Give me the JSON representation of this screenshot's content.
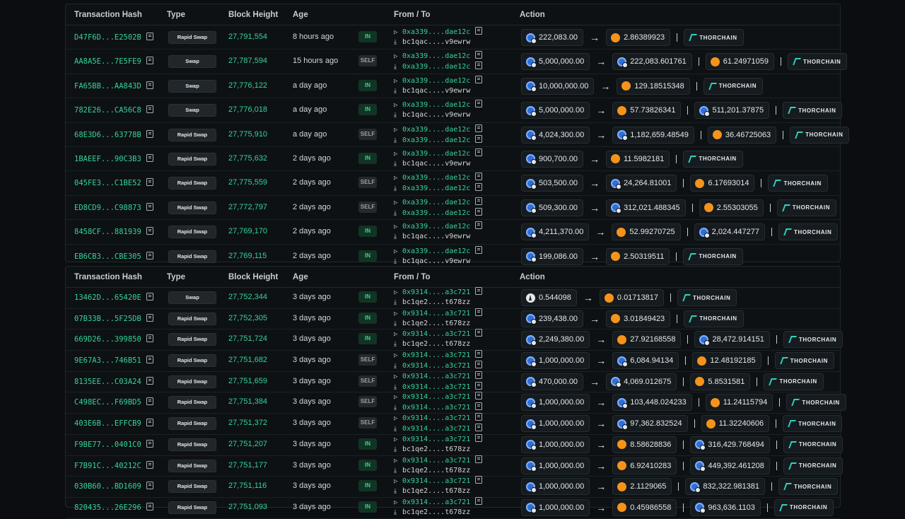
{
  "headers": {
    "hash": "Transaction Hash",
    "type": "Type",
    "block": "Block Height",
    "age": "Age",
    "fromto": "From / To",
    "action": "Action"
  },
  "thorchain": "THORCHAIN",
  "table1": [
    {
      "hash": "D47F6D...E2502B",
      "type": "Rapid Swap",
      "block": "27,791,554",
      "age": "8 hours ago",
      "dir": "IN",
      "from": "0xa339....dae12c",
      "to": "bc1qac....v9ewrw",
      "in": {
        "coin": "rune",
        "amt": "222,083.00"
      },
      "outs": [
        {
          "coin": "btc",
          "amt": "2.86389923"
        }
      ]
    },
    {
      "hash": "AA8A5E...7E5FE9",
      "type": "Swap",
      "block": "27,787,594",
      "age": "15 hours ago",
      "dir": "SELF",
      "from": "0xa339....dae12c",
      "to": "0xa339....dae12c",
      "in": {
        "coin": "rune",
        "amt": "5,000,000.00"
      },
      "outs": [
        {
          "coin": "rune",
          "amt": "222,083.601761"
        },
        {
          "coin": "btc",
          "amt": "61.24971059"
        }
      ]
    },
    {
      "hash": "FA65BB...AA843D",
      "type": "Swap",
      "block": "27,776,122",
      "age": "a day ago",
      "dir": "IN",
      "from": "0xa339....dae12c",
      "to": "bc1qac....v9ewrw",
      "in": {
        "coin": "rune",
        "amt": "10,000,000.00"
      },
      "outs": [
        {
          "coin": "btc",
          "amt": "129.18515348"
        }
      ]
    },
    {
      "hash": "782E26...CA56C8",
      "type": "Swap",
      "block": "27,776,018",
      "age": "a day ago",
      "dir": "IN",
      "from": "0xa339....dae12c",
      "to": "bc1qac....v9ewrw",
      "in": {
        "coin": "rune",
        "amt": "5,000,000.00"
      },
      "outs": [
        {
          "coin": "btc",
          "amt": "57.73826341"
        },
        {
          "coin": "rune",
          "amt": "511,201.37875"
        }
      ]
    },
    {
      "hash": "68E3D6...63778B",
      "type": "Rapid Swap",
      "block": "27,775,910",
      "age": "a day ago",
      "dir": "SELF",
      "from": "0xa339....dae12c",
      "to": "0xa339....dae12c",
      "in": {
        "coin": "rune",
        "amt": "4,024,300.00"
      },
      "outs": [
        {
          "coin": "rune",
          "amt": "1,182,659.48549"
        },
        {
          "coin": "btc",
          "amt": "36.46725063"
        }
      ]
    },
    {
      "hash": "1BAEEF...90C3B3",
      "type": "Rapid Swap",
      "block": "27,775,632",
      "age": "2 days ago",
      "dir": "IN",
      "from": "0xa339....dae12c",
      "to": "bc1qac....v9ewrw",
      "in": {
        "coin": "rune",
        "amt": "900,700.00"
      },
      "outs": [
        {
          "coin": "btc",
          "amt": "11.5982181"
        }
      ]
    },
    {
      "hash": "045FE3...C1BE52",
      "type": "Rapid Swap",
      "block": "27,775,559",
      "age": "2 days ago",
      "dir": "SELF",
      "from": "0xa339....dae12c",
      "to": "0xa339....dae12c",
      "in": {
        "coin": "rune",
        "amt": "503,500.00"
      },
      "outs": [
        {
          "coin": "rune",
          "amt": "24,264.81001"
        },
        {
          "coin": "btc",
          "amt": "6.17693014"
        }
      ]
    },
    {
      "hash": "ED8CD9...C98873",
      "type": "Rapid Swap",
      "block": "27,772,797",
      "age": "2 days ago",
      "dir": "SELF",
      "from": "0xa339....dae12c",
      "to": "0xa339....dae12c",
      "in": {
        "coin": "rune",
        "amt": "509,300.00"
      },
      "outs": [
        {
          "coin": "rune",
          "amt": "312,021.488345"
        },
        {
          "coin": "btc",
          "amt": "2.55303055"
        }
      ]
    },
    {
      "hash": "8458CF...881939",
      "type": "Rapid Swap",
      "block": "27,769,170",
      "age": "2 days ago",
      "dir": "IN",
      "from": "0xa339....dae12c",
      "to": "bc1qac....v9ewrw",
      "in": {
        "coin": "rune",
        "amt": "4,211,370.00"
      },
      "outs": [
        {
          "coin": "btc",
          "amt": "52.99270725"
        },
        {
          "coin": "rune",
          "amt": "2,024.447277"
        }
      ]
    },
    {
      "hash": "EB6CB3...CBE305",
      "type": "Rapid Swap",
      "block": "27,769,115",
      "age": "2 days ago",
      "dir": "IN",
      "from": "0xa339....dae12c",
      "to": "bc1qac....v9ewrw",
      "in": {
        "coin": "rune",
        "amt": "199,086.00"
      },
      "outs": [
        {
          "coin": "btc",
          "amt": "2.50319511"
        }
      ]
    }
  ],
  "table2": [
    {
      "hash": "13462D...65420E",
      "type": "Swap",
      "block": "27,752,344",
      "age": "3 days ago",
      "dir": "IN",
      "from": "0x9314....a3c721",
      "to": "bc1qe2....t678zz",
      "in": {
        "coin": "eth",
        "amt": "0.544098"
      },
      "outs": [
        {
          "coin": "btc",
          "amt": "0.01713817"
        }
      ]
    },
    {
      "hash": "07B33B...5F25DB",
      "type": "Rapid Swap",
      "block": "27,752,305",
      "age": "3 days ago",
      "dir": "IN",
      "from": "0x9314....a3c721",
      "to": "bc1qe2....t678zz",
      "in": {
        "coin": "rune",
        "amt": "239,438.00"
      },
      "outs": [
        {
          "coin": "btc",
          "amt": "3.01849423"
        }
      ]
    },
    {
      "hash": "669D26...399850",
      "type": "Rapid Swap",
      "block": "27,751,724",
      "age": "3 days ago",
      "dir": "IN",
      "from": "0x9314....a3c721",
      "to": "bc1qe2....t678zz",
      "in": {
        "coin": "rune",
        "amt": "2,249,380.00"
      },
      "outs": [
        {
          "coin": "btc",
          "amt": "27.92168558"
        },
        {
          "coin": "rune",
          "amt": "28,472.914151"
        }
      ]
    },
    {
      "hash": "9E67A3...746B51",
      "type": "Rapid Swap",
      "block": "27,751,682",
      "age": "3 days ago",
      "dir": "SELF",
      "from": "0x9314....a3c721",
      "to": "0x9314....a3c721",
      "in": {
        "coin": "rune",
        "amt": "1,000,000.00"
      },
      "outs": [
        {
          "coin": "rune",
          "amt": "6,084.94134"
        },
        {
          "coin": "btc",
          "amt": "12.48192185"
        }
      ]
    },
    {
      "hash": "8135EE...C03A24",
      "type": "Rapid Swap",
      "block": "27,751,659",
      "age": "3 days ago",
      "dir": "SELF",
      "from": "0x9314....a3c721",
      "to": "0x9314....a3c721",
      "in": {
        "coin": "rune",
        "amt": "470,000.00"
      },
      "outs": [
        {
          "coin": "rune",
          "amt": "4,069.012675"
        },
        {
          "coin": "btc",
          "amt": "5.8531581"
        }
      ]
    },
    {
      "hash": "C498EC...F69BD5",
      "type": "Rapid Swap",
      "block": "27,751,384",
      "age": "3 days ago",
      "dir": "SELF",
      "from": "0x9314....a3c721",
      "to": "0x9314....a3c721",
      "in": {
        "coin": "rune",
        "amt": "1,000,000.00"
      },
      "outs": [
        {
          "coin": "rune",
          "amt": "103,448.024233"
        },
        {
          "coin": "btc",
          "amt": "11.24115794"
        }
      ]
    },
    {
      "hash": "403E6B...EFFCB9",
      "type": "Rapid Swap",
      "block": "27,751,372",
      "age": "3 days ago",
      "dir": "SELF",
      "from": "0x9314....a3c721",
      "to": "0x9314....a3c721",
      "in": {
        "coin": "rune",
        "amt": "1,000,000.00"
      },
      "outs": [
        {
          "coin": "rune",
          "amt": "97,362.832524"
        },
        {
          "coin": "btc",
          "amt": "11.32240606"
        }
      ]
    },
    {
      "hash": "F9BE77...0401C0",
      "type": "Rapid Swap",
      "block": "27,751,207",
      "age": "3 days ago",
      "dir": "IN",
      "from": "0x9314....a3c721",
      "to": "bc1qe2....t678zz",
      "in": {
        "coin": "rune",
        "amt": "1,000,000.00"
      },
      "outs": [
        {
          "coin": "btc",
          "amt": "8.58628836"
        },
        {
          "coin": "rune",
          "amt": "316,429.768494"
        }
      ]
    },
    {
      "hash": "F7B91C...40212C",
      "type": "Rapid Swap",
      "block": "27,751,177",
      "age": "3 days ago",
      "dir": "IN",
      "from": "0x9314....a3c721",
      "to": "bc1qe2....t678zz",
      "in": {
        "coin": "rune",
        "amt": "1,000,000.00"
      },
      "outs": [
        {
          "coin": "btc",
          "amt": "6.92410283"
        },
        {
          "coin": "rune",
          "amt": "449,392.461208"
        }
      ]
    },
    {
      "hash": "030B60...BD1609",
      "type": "Rapid Swap",
      "block": "27,751,116",
      "age": "3 days ago",
      "dir": "IN",
      "from": "0x9314....a3c721",
      "to": "bc1qe2....t678zz",
      "in": {
        "coin": "rune",
        "amt": "1,000,000.00"
      },
      "outs": [
        {
          "coin": "btc",
          "amt": "2.1129065"
        },
        {
          "coin": "rune",
          "amt": "832,322.981381"
        }
      ]
    },
    {
      "hash": "820435...26E296",
      "type": "Rapid Swap",
      "block": "27,751,093",
      "age": "3 days ago",
      "dir": "IN",
      "from": "0x9314....a3c721",
      "to": "bc1qe2....t678zz",
      "in": {
        "coin": "rune",
        "amt": "1,000,000.00"
      },
      "outs": [
        {
          "coin": "btc",
          "amt": "0.45986558"
        },
        {
          "coin": "rune",
          "amt": "963,636.1103"
        }
      ]
    }
  ]
}
